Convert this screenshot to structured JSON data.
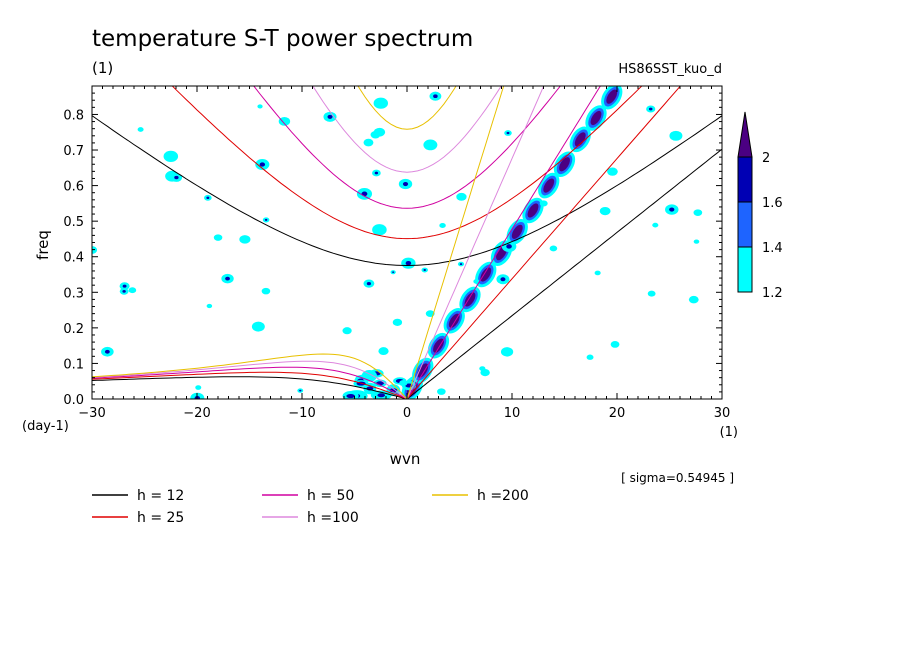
{
  "chart_data": {
    "type": "heatmap",
    "title": "temperature S-T power spectrum",
    "subtitle": "(1)",
    "case_label": "HS86SST_kuo_d",
    "xlabel": "wvn",
    "xunit": "(1)",
    "ylabel": "freq",
    "yunit": "(day-1)",
    "xlim": [
      -30,
      30
    ],
    "ylim": [
      0,
      0.88
    ],
    "xticks": [
      "−30",
      "−20",
      "−10",
      "0",
      "10",
      "20",
      "30"
    ],
    "xtick_values": [
      -30,
      -20,
      -10,
      0,
      10,
      20,
      30
    ],
    "yticks": [
      "0.0",
      "0.1",
      "0.2",
      "0.3",
      "0.4",
      "0.5",
      "0.6",
      "0.7",
      "0.8"
    ],
    "ytick_values": [
      0,
      0.1,
      0.2,
      0.3,
      0.4,
      0.5,
      0.6,
      0.7,
      0.8
    ],
    "sigma_note": "[ sigma=0.54945 ]",
    "colorbar": {
      "levels": [
        1.2,
        1.4,
        1.6,
        2
      ],
      "labels": [
        "1.2",
        "1.4",
        "1.6",
        "2"
      ],
      "colors": [
        "#00ffff",
        "#1e64ff",
        "#0000b4",
        "#4b0082"
      ]
    },
    "dispersion_curves": [
      {
        "label": "h = 12",
        "h": 12,
        "color": "#000000"
      },
      {
        "label": "h = 25",
        "h": 25,
        "color": "#e00000"
      },
      {
        "label": "h = 50",
        "h": 50,
        "color": "#d000a0"
      },
      {
        "label": "h =100",
        "h": 100,
        "color": "#dd88dd"
      },
      {
        "label": "h =200",
        "h": 200,
        "color": "#e8c000"
      }
    ],
    "spectral_ridge": [
      {
        "k": 0.5,
        "f": 0.03
      },
      {
        "k": 1.5,
        "f": 0.08
      },
      {
        "k": 3,
        "f": 0.15
      },
      {
        "k": 4.5,
        "f": 0.22
      },
      {
        "k": 6,
        "f": 0.28
      },
      {
        "k": 7.5,
        "f": 0.35
      },
      {
        "k": 9,
        "f": 0.41
      },
      {
        "k": 10.5,
        "f": 0.47
      },
      {
        "k": 12,
        "f": 0.53
      },
      {
        "k": 13.5,
        "f": 0.6
      },
      {
        "k": 15,
        "f": 0.66
      },
      {
        "k": 16.5,
        "f": 0.73
      },
      {
        "k": 18,
        "f": 0.79
      },
      {
        "k": 19.5,
        "f": 0.85
      }
    ]
  }
}
